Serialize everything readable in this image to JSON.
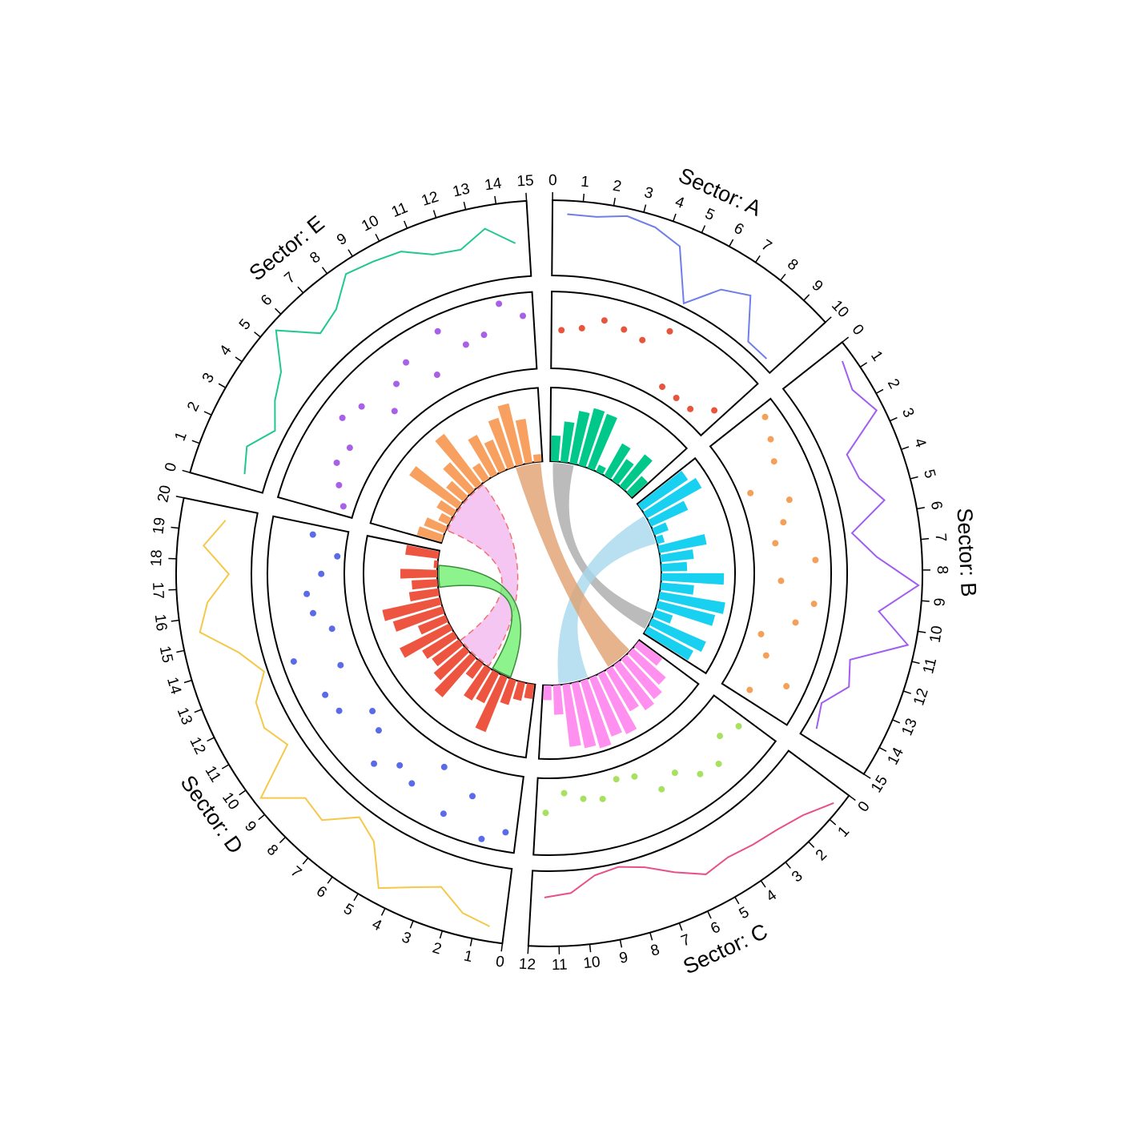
{
  "chart_data": {
    "type": "circos",
    "sectors": [
      {
        "name": "Sector: A",
        "xlim": [
          0,
          10
        ],
        "xticks": [
          0,
          1,
          2,
          3,
          4,
          5,
          6,
          7,
          8,
          9,
          10
        ],
        "x": [
          0.5,
          1.5,
          2.5,
          3.5,
          4.5,
          5.5,
          6.5,
          7.5,
          8.5,
          9.5
        ],
        "line": {
          "color": "#6f7ee8",
          "values": [
            0.82,
            0.82,
            0.9,
            0.85,
            0.72,
            0.05,
            0.45,
            0.6,
            0.1,
            0.1
          ]
        },
        "points": {
          "color": "#e8553c",
          "values": [
            0.5,
            0.55,
            0.7,
            0.65,
            0.6,
            0.85,
            0.17,
            0.15,
            0.15,
            0.35
          ]
        },
        "bars": {
          "color": "#00c78a",
          "values": [
            0.35,
            0.55,
            0.72,
            0.8,
            0.78,
            0.1,
            0.5,
            0.35,
            0.55,
            0.3
          ]
        }
      },
      {
        "name": "Sector: B",
        "xlim": [
          0,
          15
        ],
        "xticks": [
          0,
          1,
          2,
          3,
          4,
          5,
          6,
          7,
          8,
          9,
          10,
          11,
          12,
          13,
          14,
          15
        ],
        "x": [
          0.5,
          1.5,
          2.5,
          3.5,
          4.5,
          5.5,
          6.5,
          7.5,
          8.5,
          9.5,
          10.5,
          11.5,
          12.5,
          13.5,
          14.5
        ],
        "line": {
          "color": "#a05ef0",
          "values": [
            0.85,
            0.75,
            0.9,
            0.3,
            0.35,
            0.6,
            0.1,
            0.4,
            0.95,
            0.45,
            0.9,
            0.2,
            0.3,
            0.05,
            0.15
          ]
        },
        "points": {
          "color": "#f5a05a",
          "values": [
            0.8,
            0.7,
            0.6,
            0.15,
            0.6,
            0.45,
            0.3,
            0.8,
            0.35,
            0.8,
            0.6,
            0.2,
            0.35,
            0.75,
            0.35
          ]
        },
        "bars": {
          "color": "#18d0f0",
          "values": [
            0.75,
            0.85,
            0.55,
            0.2,
            0.1,
            0.65,
            0.45,
            0.35,
            0.85,
            0.45,
            0.9,
            0.8,
            0.25,
            0.8,
            0.7
          ]
        }
      },
      {
        "name": "Sector: C",
        "xlim": [
          0,
          12
        ],
        "xticks": [
          0,
          1,
          2,
          3,
          4,
          5,
          6,
          7,
          8,
          9,
          10,
          11,
          12
        ],
        "x": [
          0.5,
          1.5,
          2.5,
          3.5,
          4.5,
          5.5,
          6.5,
          7.5,
          8.5,
          9.5,
          10.5,
          11.5
        ],
        "line": {
          "color": "#e8508a",
          "values": [
            0.9,
            0.7,
            0.6,
            0.55,
            0.5,
            0.55,
            0.35,
            0.15,
            0.05,
            0.1,
            0.3,
            0.35
          ]
        },
        "points": {
          "color": "#a8e060",
          "values": [
            0.5,
            0.4,
            0.65,
            0.6,
            0.4,
            0.5,
            0.2,
            0.15,
            0.35,
            0.3,
            0.2,
            0.45
          ]
        },
        "bars": {
          "color": "#ff90f0",
          "values": [
            0.4,
            0.6,
            0.7,
            0.75,
            0.65,
            0.9,
            0.85,
            0.95,
            0.9,
            0.85,
            0.4,
            0.2
          ]
        }
      },
      {
        "name": "Sector: D",
        "xlim": [
          0,
          20
        ],
        "xticks": [
          0,
          1,
          2,
          3,
          4,
          5,
          6,
          7,
          8,
          9,
          10,
          11,
          12,
          13,
          14,
          15,
          16,
          17,
          18,
          19,
          20
        ],
        "x": [
          0.5,
          1.5,
          2.5,
          3.5,
          4.5,
          5.5,
          6.5,
          7.5,
          8.5,
          9.5,
          10.5,
          11.5,
          12.5,
          13.5,
          14.5,
          15.5,
          16.5,
          17.5,
          18.5,
          19.5
        ],
        "line": {
          "color": "#f5c84a",
          "values": [
            0.8,
            0.7,
            0.45,
            0.6,
            0.8,
            0.3,
            0.15,
            0.5,
            0.45,
            0.9,
            0.2,
            0.35,
            0.3,
            0.05,
            0.3,
            0.75,
            0.6,
            0.3,
            0.65,
            0.4
          ]
        },
        "points": {
          "color": "#5a6ae8",
          "values": [
            0.75,
            0.9,
            0.4,
            0.75,
            0.2,
            0.6,
            0.5,
            0.7,
            0.35,
            0.25,
            0.6,
            0.65,
            0.3,
            0.85,
            0.25,
            0.45,
            0.5,
            0.3,
            0.1,
            0.45
          ]
        },
        "bars": {
          "color": "#ee5540",
          "values": [
            0.2,
            0.25,
            0.35,
            0.8,
            0.45,
            0.5,
            0.25,
            0.7,
            0.55,
            0.45,
            0.5,
            0.75,
            0.4,
            0.7,
            0.8,
            0.4,
            0.35,
            0.5,
            0.05,
            0.45
          ]
        }
      },
      {
        "name": "Sector: E",
        "xlim": [
          0,
          15
        ],
        "xticks": [
          0,
          1,
          2,
          3,
          4,
          5,
          6,
          7,
          8,
          9,
          10,
          11,
          12,
          13,
          14,
          15
        ],
        "x": [
          0.5,
          1.5,
          2.5,
          3.5,
          4.5,
          5.5,
          6.5,
          7.5,
          8.5,
          9.5,
          10.5,
          11.5,
          12.5,
          13.5,
          14.5
        ],
        "line": {
          "color": "#20c890",
          "values": [
            0.3,
            0.4,
            0.15,
            0.35,
            0.5,
            0.9,
            0.45,
            0.55,
            0.85,
            0.8,
            0.75,
            0.55,
            0.5,
            0.7,
            0.45
          ]
        },
        "points": {
          "color": "#a860e8",
          "values": [
            0.15,
            0.3,
            0.45,
            0.4,
            0.7,
            0.6,
            0.25,
            0.5,
            0.65,
            0.3,
            0.8,
            0.5,
            0.55,
            0.9,
            0.7
          ]
        },
        "bars": {
          "color": "#f8a060",
          "values": [
            0.35,
            0.3,
            0.15,
            0.25,
            0.8,
            0.3,
            0.5,
            0.85,
            0.25,
            0.6,
            0.45,
            0.7,
            0.85,
            0.6,
            0.1
          ]
        }
      }
    ],
    "ylim": [
      0,
      1
    ],
    "links": [
      {
        "from": {
          "sector": 0,
          "range": [
            0.3,
            2.6
          ]
        },
        "to": {
          "sector": 1,
          "range": [
            12.6,
            14.5
          ]
        },
        "color": "#aaaaaa"
      },
      {
        "from": {
          "sector": 1,
          "range": [
            1.5,
            4.8
          ]
        },
        "to": {
          "sector": 2,
          "range": [
            7,
            10.3
          ]
        },
        "color": "#a8d8ec"
      },
      {
        "from": {
          "sector": 4,
          "range": [
            12,
            14.8
          ]
        },
        "to": {
          "sector": 2,
          "range": [
            1.5,
            4.5
          ]
        },
        "color": "#e0a070"
      },
      {
        "from": {
          "sector": 4,
          "range": [
            1.5,
            8
          ]
        },
        "to": {
          "sector": 3,
          "range": [
            5.5,
            9.7
          ]
        },
        "color": "#f4b8f0",
        "border": "#f07070",
        "dashed": true
      },
      {
        "from": {
          "sector": 3,
          "range": [
            16,
            18.4
          ]
        },
        "to": {
          "sector": 3,
          "range": [
            2.8,
            5
          ]
        },
        "color": "#70f070",
        "border": "#3a8a3a"
      }
    ]
  }
}
